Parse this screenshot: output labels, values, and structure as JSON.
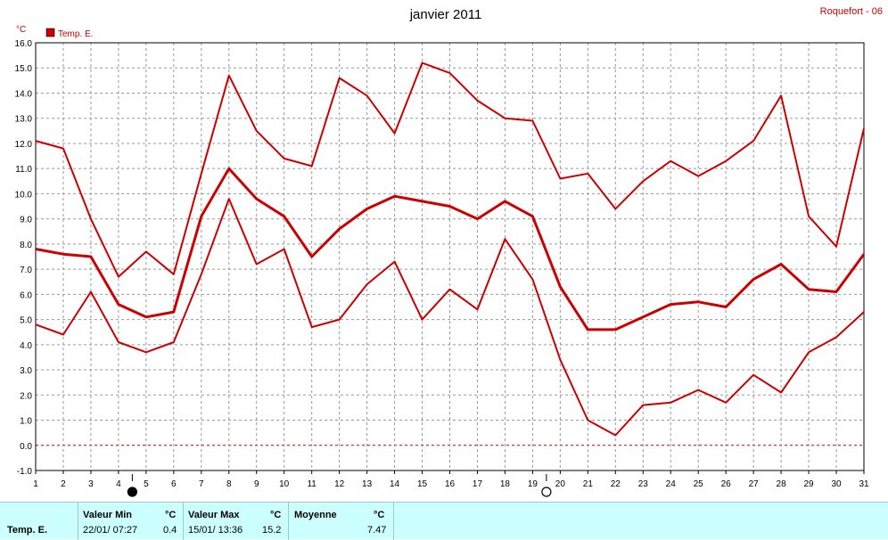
{
  "chart_data": {
    "type": "line",
    "title": "janvier 2011",
    "location": "Roquefort - 06",
    "ylabel": "°C",
    "ylim": [
      -1.0,
      16.0
    ],
    "yticks": [
      "-1.0",
      "0.0",
      "1.0",
      "2.0",
      "3.0",
      "4.0",
      "5.0",
      "6.0",
      "7.0",
      "8.0",
      "9.0",
      "10.0",
      "11.0",
      "12.0",
      "13.0",
      "14.0",
      "15.0",
      "16.0"
    ],
    "x": [
      1,
      2,
      3,
      4,
      5,
      6,
      7,
      8,
      9,
      10,
      11,
      12,
      13,
      14,
      15,
      16,
      17,
      18,
      19,
      20,
      21,
      22,
      23,
      24,
      25,
      26,
      27,
      28,
      29,
      30,
      31
    ],
    "grid": true,
    "legend": {
      "label": "Temp. E.",
      "color": "#cc0000",
      "position": "top-left"
    },
    "series": [
      {
        "role": "max",
        "values": [
          12.1,
          11.8,
          9.0,
          6.7,
          7.7,
          6.8,
          10.8,
          14.7,
          12.5,
          11.4,
          11.1,
          14.6,
          13.9,
          12.4,
          15.2,
          14.8,
          13.7,
          13.0,
          12.9,
          10.6,
          10.8,
          9.4,
          10.5,
          11.3,
          10.7,
          11.3,
          12.1,
          13.9,
          9.1,
          7.9,
          12.6
        ]
      },
      {
        "role": "mean",
        "values": [
          7.8,
          7.6,
          7.5,
          5.6,
          5.1,
          5.3,
          9.1,
          11.0,
          9.8,
          9.1,
          7.5,
          8.6,
          9.4,
          9.9,
          9.7,
          9.5,
          9.0,
          9.7,
          9.1,
          6.3,
          4.6,
          4.6,
          5.1,
          5.6,
          5.7,
          5.5,
          6.6,
          7.2,
          6.2,
          6.1,
          7.6
        ]
      },
      {
        "role": "min",
        "values": [
          4.8,
          4.4,
          6.1,
          4.1,
          3.7,
          4.1,
          6.8,
          9.8,
          7.2,
          7.8,
          4.7,
          5.0,
          6.4,
          7.3,
          5.0,
          6.2,
          5.4,
          8.2,
          6.6,
          3.4,
          1.0,
          0.4,
          1.6,
          1.7,
          2.2,
          1.7,
          2.8,
          2.1,
          3.7,
          4.3,
          5.3
        ]
      }
    ],
    "moon_markers": [
      {
        "day": 4,
        "phase": "new-moon"
      },
      {
        "day": 19,
        "phase": "full-moon"
      }
    ],
    "colors": {
      "series": "#cc0000",
      "grid": "#999999",
      "zero_line": "#cc0000",
      "title": "#000000",
      "location": "#cc0000"
    }
  },
  "summary": {
    "series_name": "Temp. E.",
    "min": {
      "label": "Valeur Min",
      "unit": "°C",
      "when": "22/01/ 07:27",
      "value": "0.4"
    },
    "max": {
      "label": "Valeur Max",
      "unit": "°C",
      "when": "15/01/ 13:36",
      "value": "15.2"
    },
    "mean": {
      "label": "Moyenne",
      "unit": "°C",
      "value": "7.47"
    }
  }
}
